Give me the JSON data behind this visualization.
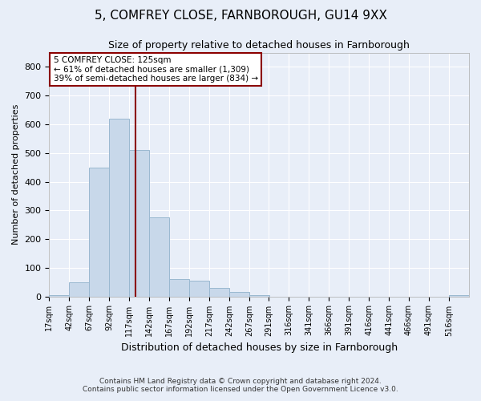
{
  "title": "5, COMFREY CLOSE, FARNBOROUGH, GU14 9XX",
  "subtitle": "Size of property relative to detached houses in Farnborough",
  "xlabel": "Distribution of detached houses by size in Farnborough",
  "ylabel": "Number of detached properties",
  "footer_line1": "Contains HM Land Registry data © Crown copyright and database right 2024.",
  "footer_line2": "Contains public sector information licensed under the Open Government Licence v3.0.",
  "annotation_title": "5 COMFREY CLOSE: 125sqm",
  "annotation_line1": "← 61% of detached houses are smaller (1,309)",
  "annotation_line2": "39% of semi-detached houses are larger (834) →",
  "property_size": 125,
  "bar_color": "#c8d8ea",
  "bar_edge_color": "#9ab8d0",
  "vline_color": "#8b0000",
  "annotation_box_color": "#8b0000",
  "fig_bg_color": "#e8eef8",
  "ax_bg_color": "#e8eef8",
  "bins": [
    17,
    42,
    67,
    92,
    117,
    142,
    167,
    192,
    217,
    242,
    267,
    291,
    316,
    341,
    366,
    391,
    416,
    441,
    466,
    491,
    516
  ],
  "counts": [
    3,
    50,
    450,
    620,
    510,
    275,
    60,
    55,
    30,
    15,
    5,
    0,
    0,
    0,
    0,
    0,
    0,
    0,
    0,
    0,
    5
  ],
  "ylim": [
    0,
    850
  ],
  "yticks": [
    0,
    100,
    200,
    300,
    400,
    500,
    600,
    700,
    800
  ],
  "grid_color": "#ffffff",
  "title_fontsize": 11,
  "subtitle_fontsize": 9,
  "ylabel_fontsize": 8,
  "xlabel_fontsize": 9,
  "ytick_fontsize": 8,
  "xtick_fontsize": 7
}
